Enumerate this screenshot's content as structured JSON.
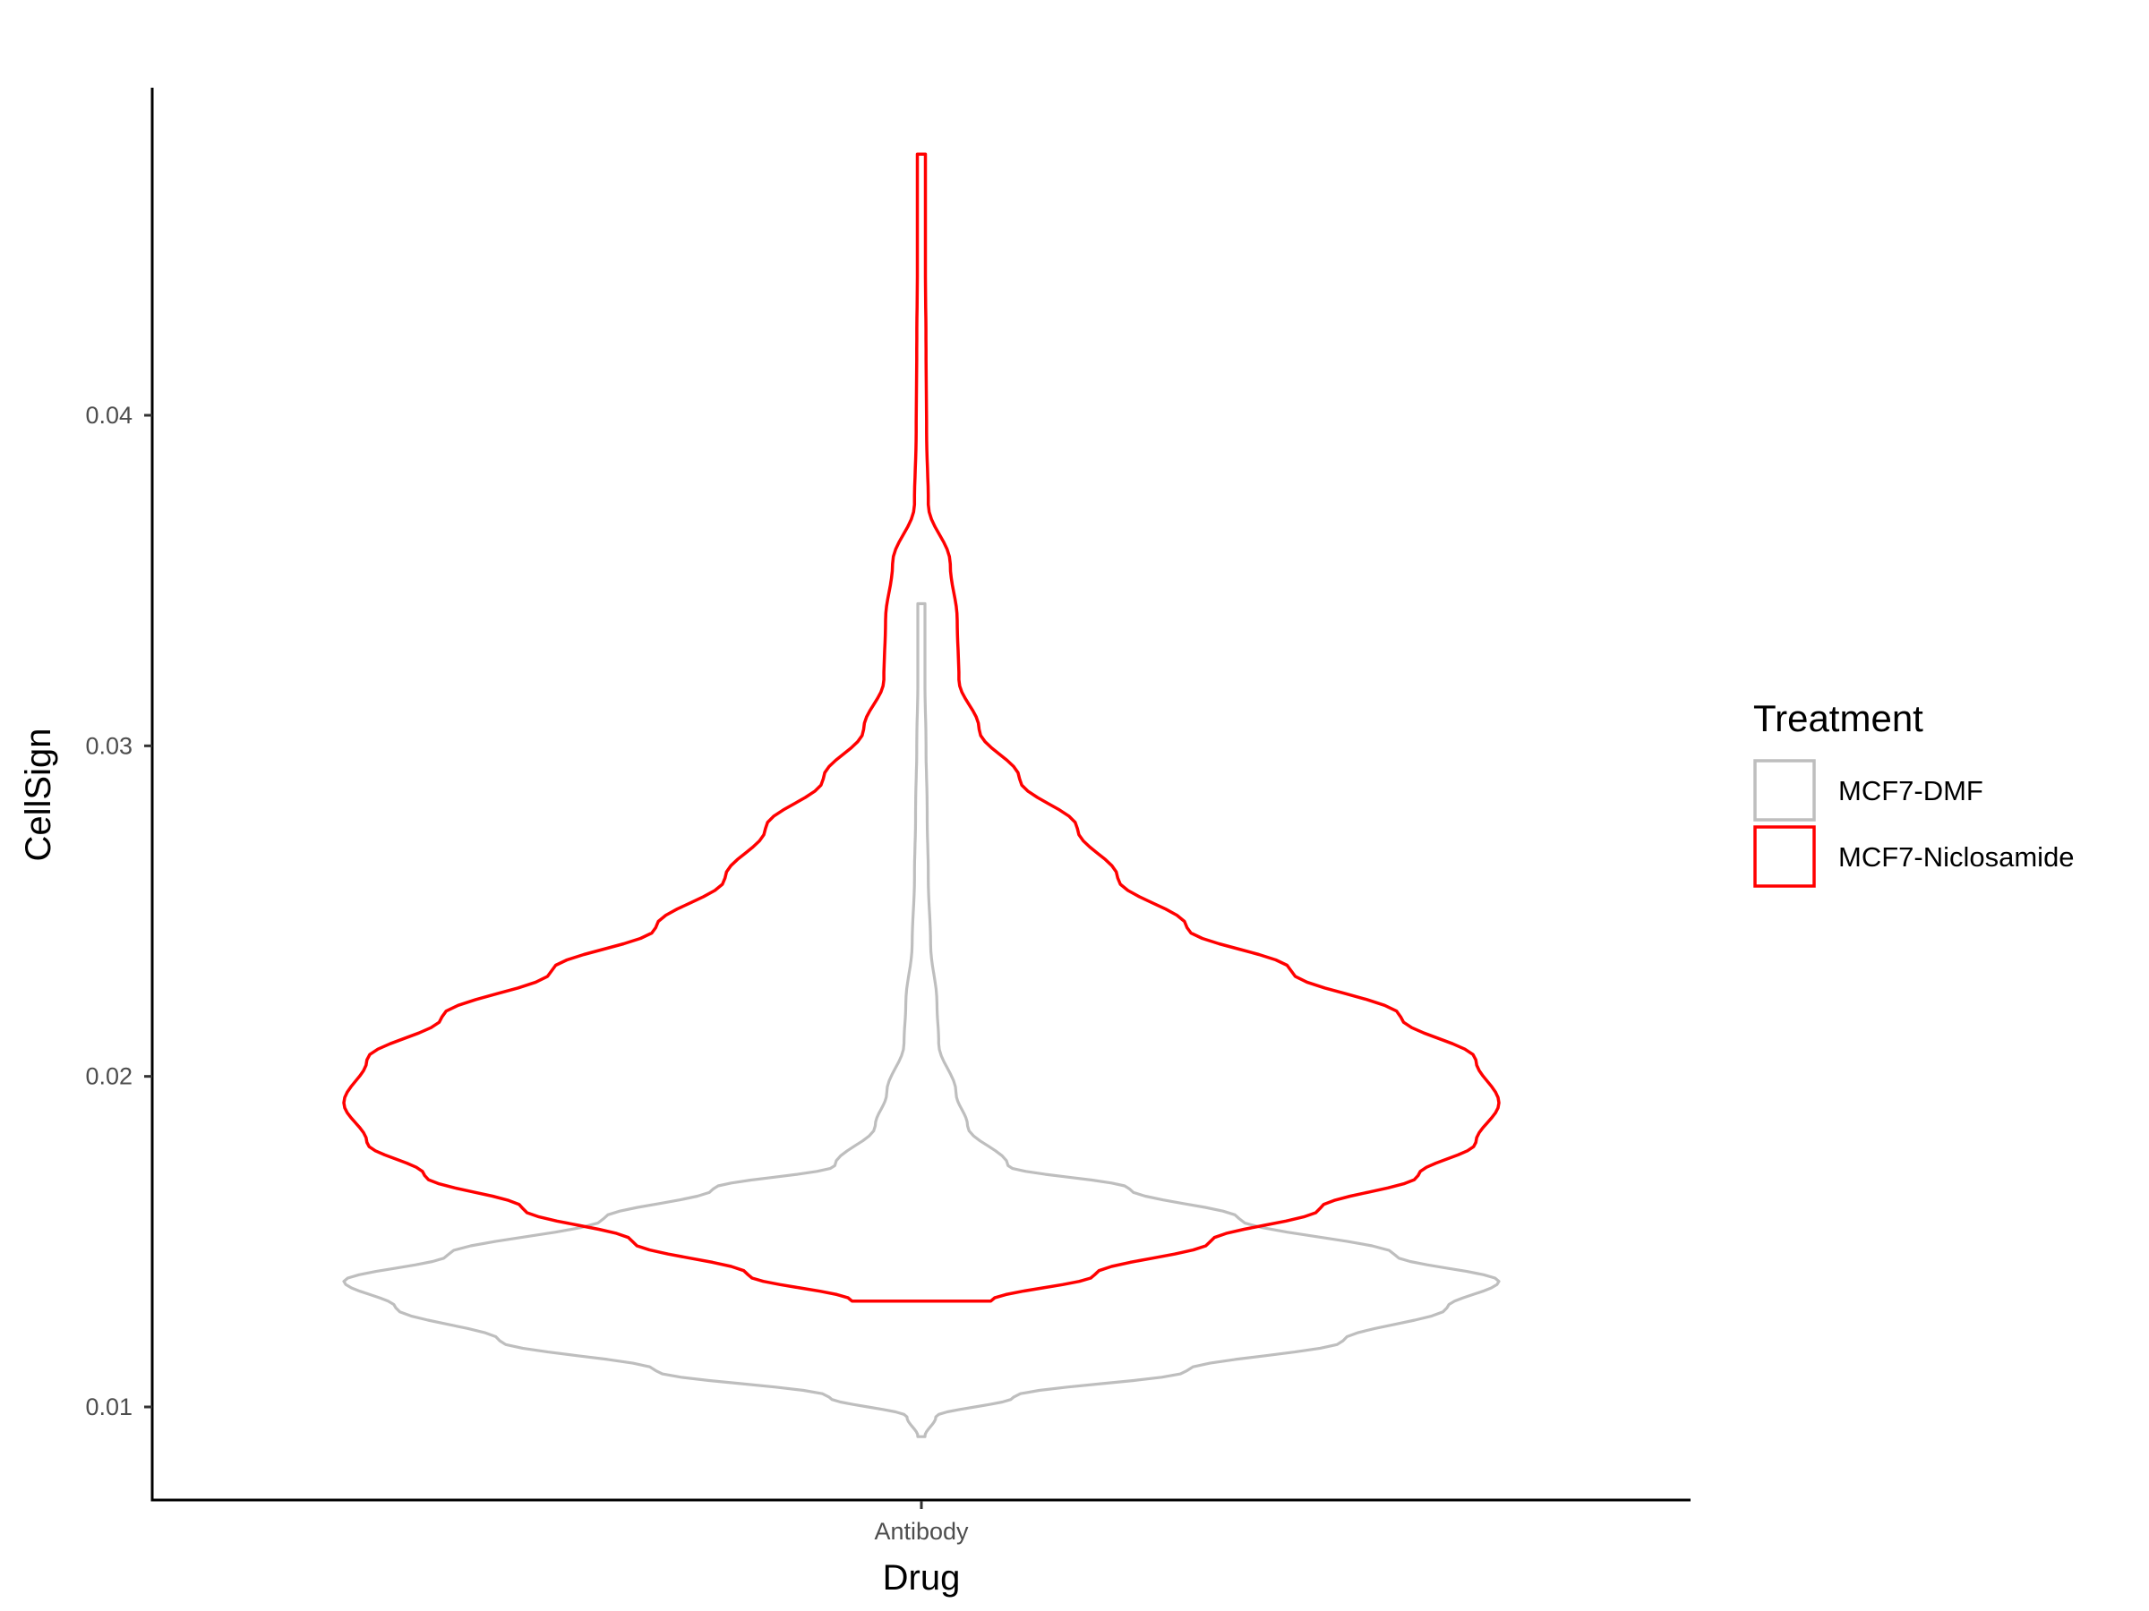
{
  "chart_data": {
    "type": "violin",
    "xlabel": "Drug",
    "ylabel": "CellSign",
    "categories": [
      "Antibody"
    ],
    "ylim": [
      0.0073,
      0.05
    ],
    "yticks": [
      0.01,
      0.02,
      0.03,
      0.04
    ],
    "ytick_labels": [
      "0.01",
      "0.02",
      "0.03",
      "0.04"
    ],
    "legend": {
      "title": "Treatment",
      "position": "right",
      "entries": [
        {
          "label": "MCF7-DMF",
          "color": "#bebebe"
        },
        {
          "label": "MCF7-Niclosamide",
          "color": "#ff0000"
        }
      ]
    },
    "series": [
      {
        "name": "MCF7-DMF",
        "category": "Antibody",
        "color": "#bebebe",
        "range": [
          0.0091,
          0.0343
        ],
        "density_profile": [
          [
            0.0091,
            0.006
          ],
          [
            0.0097,
            0.025
          ],
          [
            0.0103,
            0.16
          ],
          [
            0.0111,
            0.46
          ],
          [
            0.012,
            0.73
          ],
          [
            0.013,
            0.91
          ],
          [
            0.0138,
            1.0
          ],
          [
            0.0146,
            0.82
          ],
          [
            0.0157,
            0.55
          ],
          [
            0.0166,
            0.36
          ],
          [
            0.0173,
            0.15
          ],
          [
            0.0185,
            0.08
          ],
          [
            0.0195,
            0.06
          ],
          [
            0.021,
            0.03
          ],
          [
            0.0222,
            0.027
          ],
          [
            0.024,
            0.016
          ],
          [
            0.026,
            0.012
          ],
          [
            0.028,
            0.01
          ],
          [
            0.03,
            0.008
          ],
          [
            0.032,
            0.006
          ],
          [
            0.0343,
            0.004
          ]
        ]
      },
      {
        "name": "MCF7-Niclosamide",
        "category": "Antibody",
        "color": "#ff0000",
        "range": [
          0.0132,
          0.0479
        ],
        "density_profile": [
          [
            0.0132,
            0.12
          ],
          [
            0.014,
            0.3
          ],
          [
            0.015,
            0.5
          ],
          [
            0.016,
            0.69
          ],
          [
            0.017,
            0.86
          ],
          [
            0.018,
            0.96
          ],
          [
            0.0192,
            1.0
          ],
          [
            0.0205,
            0.96
          ],
          [
            0.0218,
            0.83
          ],
          [
            0.0232,
            0.64
          ],
          [
            0.0245,
            0.46
          ],
          [
            0.026,
            0.34
          ],
          [
            0.0275,
            0.27
          ],
          [
            0.029,
            0.17
          ],
          [
            0.0305,
            0.1
          ],
          [
            0.032,
            0.065
          ],
          [
            0.0338,
            0.062
          ],
          [
            0.0355,
            0.05
          ],
          [
            0.0373,
            0.012
          ],
          [
            0.0395,
            0.009
          ],
          [
            0.042,
            0.008
          ],
          [
            0.0445,
            0.007
          ],
          [
            0.0479,
            0.007
          ]
        ]
      }
    ],
    "grid": false
  }
}
